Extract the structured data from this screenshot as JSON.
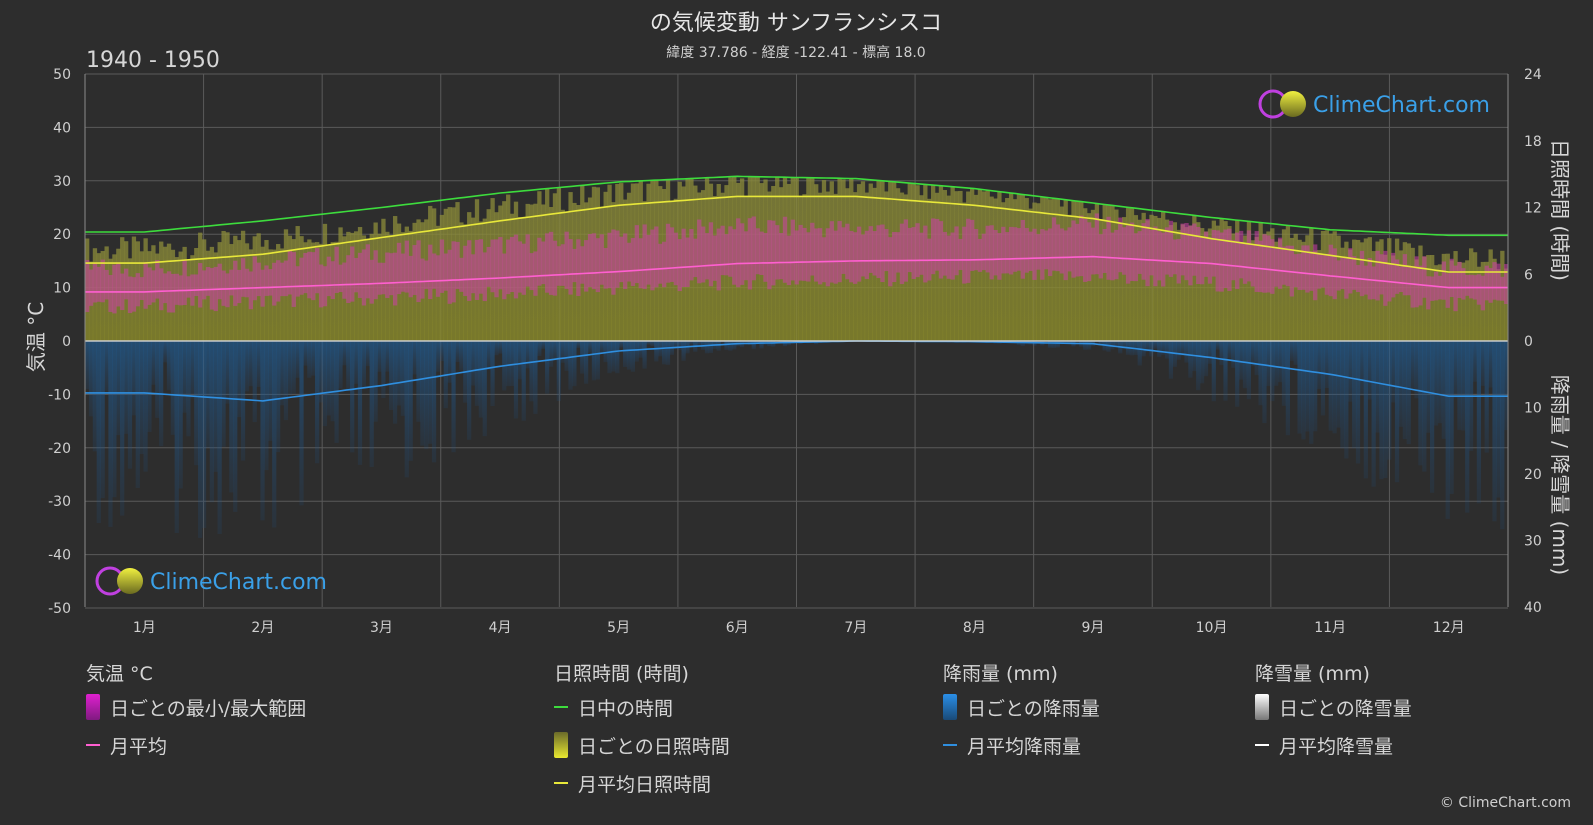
{
  "title": "の気候変動 サンフランシスコ",
  "subtitle": "緯度 37.786 - 経度 -122.41 - 標高 18.0",
  "period": "1940 - 1950",
  "watermark": "ClimeChart.com",
  "copyright": "© ClimeChart.com",
  "chart_data": {
    "type": "line",
    "categories": [
      "1月",
      "2月",
      "3月",
      "4月",
      "5月",
      "6月",
      "7月",
      "8月",
      "9月",
      "10月",
      "11月",
      "12月"
    ],
    "axes": {
      "left": {
        "label": "気温 °C",
        "range": [
          -50,
          50
        ],
        "ticks": [
          50,
          40,
          30,
          20,
          10,
          0,
          -10,
          -20,
          -30,
          -40,
          -50
        ]
      },
      "right_top": {
        "label": "日照時間 (時間)",
        "range": [
          0,
          24
        ],
        "ticks": [
          24,
          18,
          12,
          6,
          0
        ]
      },
      "right_bottom": {
        "label": "降雨量 / 降雪量 (mm)",
        "range": [
          0,
          40
        ],
        "ticks": [
          0,
          10,
          20,
          30,
          40
        ]
      }
    },
    "grid": true,
    "series": [
      {
        "name": "日中の時間",
        "unit": "時間",
        "color": "#3ddc3d",
        "values": [
          9.8,
          10.8,
          12.0,
          13.3,
          14.3,
          14.8,
          14.6,
          13.7,
          12.4,
          11.1,
          10.0,
          9.5
        ]
      },
      {
        "name": "月平均日照時間",
        "unit": "時間",
        "color": "#e8e83a",
        "values": [
          7.0,
          7.8,
          9.3,
          10.8,
          12.2,
          13.0,
          13.0,
          12.2,
          11.0,
          9.2,
          7.7,
          6.2
        ]
      },
      {
        "name": "日ごとの日照時間",
        "unit": "時間",
        "color": "#b0b040",
        "values": [
          7.0,
          7.8,
          9.3,
          10.8,
          12.2,
          13.0,
          13.0,
          12.2,
          11.0,
          9.2,
          7.7,
          6.2
        ]
      },
      {
        "name": "月平均",
        "unit": "°C",
        "color": "#ff5fd0",
        "values": [
          9.2,
          10.0,
          10.8,
          11.8,
          13.0,
          14.5,
          15.0,
          15.2,
          15.8,
          14.5,
          12.2,
          10.0
        ]
      },
      {
        "name": "日ごとの最小/最大範囲",
        "unit": "°C",
        "color": "#cc3fa6",
        "min": [
          6.5,
          7.5,
          8.0,
          8.8,
          10.0,
          11.0,
          11.5,
          12.0,
          12.0,
          10.8,
          8.8,
          7.0
        ],
        "max": [
          13.5,
          15.0,
          16.5,
          18.0,
          19.5,
          21.5,
          21.0,
          21.0,
          22.0,
          20.0,
          16.5,
          13.5
        ]
      },
      {
        "name": "月平均降雨量",
        "unit": "mm",
        "color": "#2f8fe0",
        "values": [
          7.8,
          9.0,
          6.7,
          3.8,
          1.5,
          0.4,
          0.0,
          0.1,
          0.4,
          2.5,
          5.0,
          8.3
        ]
      },
      {
        "name": "日ごとの降雨量",
        "unit": "mm",
        "color": "#2a6fb0",
        "values": [
          7.8,
          9.0,
          6.7,
          3.8,
          1.5,
          0.4,
          0.0,
          0.1,
          0.4,
          2.5,
          5.0,
          8.3
        ]
      },
      {
        "name": "月平均降雪量",
        "unit": "mm",
        "color": "#ffffff",
        "values": [
          0,
          0,
          0,
          0,
          0,
          0,
          0,
          0,
          0,
          0,
          0,
          0
        ]
      }
    ]
  },
  "legend": {
    "groups": [
      {
        "heading": "気温 °C",
        "items": [
          {
            "label": "日ごとの最小/最大範囲",
            "swatch": "box",
            "color": "#e020d0"
          },
          {
            "label": "月平均",
            "swatch": "line",
            "color": "#ff5fd0"
          }
        ]
      },
      {
        "heading": "日照時間 (時間)",
        "items": [
          {
            "label": "日中の時間",
            "swatch": "line",
            "color": "#3ddc3d"
          },
          {
            "label": "日ごとの日照時間",
            "swatch": "box",
            "color": "#d8d830"
          },
          {
            "label": "月平均日照時間",
            "swatch": "line",
            "color": "#e8e83a"
          }
        ]
      },
      {
        "heading": "降雨量 (mm)",
        "items": [
          {
            "label": "日ごとの降雨量",
            "swatch": "box",
            "color": "#1e7fd8"
          },
          {
            "label": "月平均降雨量",
            "swatch": "line",
            "color": "#2f8fe0"
          }
        ]
      },
      {
        "heading": "降雪量 (mm)",
        "items": [
          {
            "label": "日ごとの降雪量",
            "swatch": "box",
            "color": "#dddddd"
          },
          {
            "label": "月平均降雪量",
            "swatch": "line",
            "color": "#ffffff"
          }
        ]
      }
    ]
  }
}
